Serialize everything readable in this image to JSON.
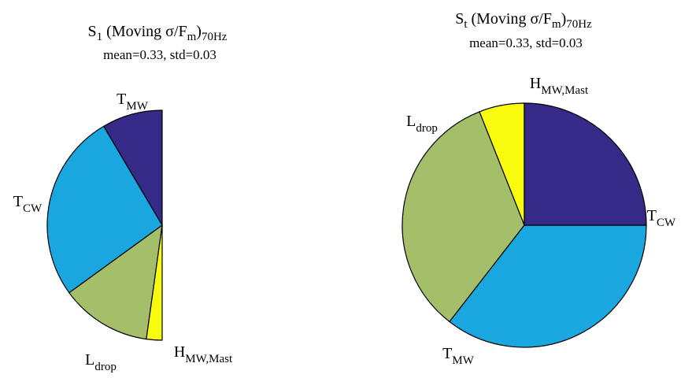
{
  "chart_data": [
    {
      "type": "pie",
      "title": {
        "main": "S",
        "sub1": "1",
        "mid": " (Moving σ/F",
        "sub2": "m",
        "close": ")",
        "sub3": "70Hz"
      },
      "subtitle": "mean=0.33, std=0.03",
      "slices": [
        {
          "label": {
            "main": "T",
            "sub": "MW"
          },
          "value": 0.085,
          "color": "#352a87"
        },
        {
          "label": {
            "main": "T",
            "sub": "CW"
          },
          "value": 0.265,
          "color": "#1aa6df"
        },
        {
          "label": {
            "main": "L",
            "sub": "drop"
          },
          "value": 0.128,
          "color": "#a5be6a"
        },
        {
          "label": {
            "main": "H",
            "sub": "MW,Mast"
          },
          "value": 0.022,
          "color": "#f9fb0e"
        }
      ]
    },
    {
      "type": "pie",
      "title": {
        "main": "S",
        "sub1": "t",
        "mid": " (Moving σ/F",
        "sub2": "m",
        "close": ")",
        "sub3": "70Hz"
      },
      "subtitle": "mean=0.33, std=0.03",
      "slices": [
        {
          "label": {
            "main": "H",
            "sub": "MW,Mast"
          },
          "value": 0.06,
          "color": "#f9fb0e"
        },
        {
          "label": {
            "main": "L",
            "sub": "drop"
          },
          "value": 0.335,
          "color": "#a5be6a"
        },
        {
          "label": {
            "main": "T",
            "sub": "CW"
          },
          "value": 0.355,
          "color": "#1aa6df"
        },
        {
          "label": {
            "main": "T",
            "sub": "MW"
          },
          "value": 0.25,
          "color": "#352a87"
        }
      ]
    }
  ]
}
